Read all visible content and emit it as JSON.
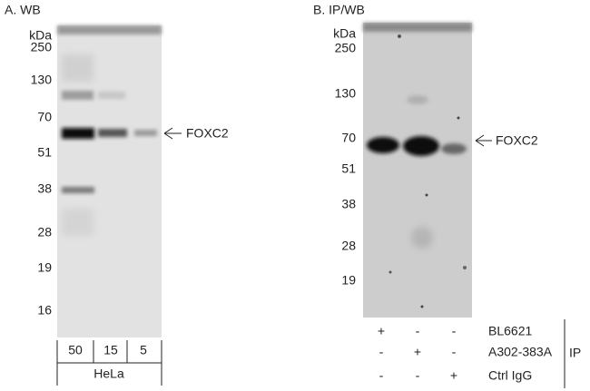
{
  "panel_a": {
    "title": "A. WB",
    "unit": "kDa",
    "markers": [
      "250",
      "130",
      "70",
      "51",
      "38",
      "28",
      "19",
      "16"
    ],
    "target": "FOXC2",
    "lanes": [
      "50",
      "15",
      "5"
    ],
    "sample": "HeLa"
  },
  "panel_b": {
    "title": "B. IP/WB",
    "unit": "kDa",
    "markers": [
      "250",
      "130",
      "70",
      "51",
      "38",
      "28",
      "19"
    ],
    "target": "FOXC2",
    "rows": [
      {
        "label": "BL6621",
        "signs": [
          "+",
          "-",
          "-"
        ]
      },
      {
        "label": "A302-383A",
        "signs": [
          "-",
          "+",
          "-"
        ]
      },
      {
        "label": "Ctrl IgG",
        "signs": [
          "-",
          "-",
          "+"
        ]
      }
    ],
    "group": "IP"
  }
}
